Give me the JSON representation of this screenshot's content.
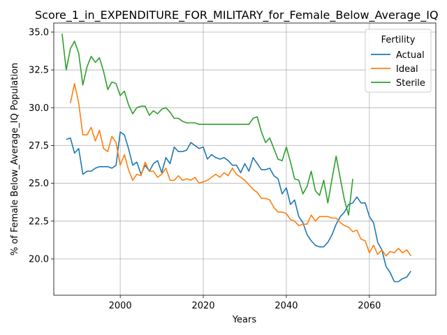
{
  "chart_data": {
    "type": "line",
    "title": "Score_1_in_EXPENDITURE_FOR_MILITARY_for_Female_Below_Average_IQ",
    "xlabel": "Years",
    "ylabel": "% of Female Below_Average_IQ Population",
    "xlim": [
      1984,
      2076
    ],
    "ylim": [
      17.6,
      35.6
    ],
    "x_ticks": [
      2000,
      2020,
      2040,
      2060
    ],
    "y_ticks": [
      20.0,
      22.5,
      25.0,
      27.5,
      30.0,
      32.5,
      35.0
    ],
    "x_tick_labels": [
      "2000",
      "2020",
      "2040",
      "2060"
    ],
    "y_tick_labels": [
      "20.0",
      "22.5",
      "25.0",
      "27.5",
      "30.0",
      "32.5",
      "35.0"
    ],
    "grid": true,
    "legend": {
      "title": "Fertility",
      "placement": "upper right"
    },
    "series": [
      {
        "name": "Actual",
        "color": "#1f77b4",
        "x": [
          1987,
          1988,
          1989,
          1990,
          1991,
          1992,
          1993,
          1994,
          1995,
          1996,
          1997,
          1998,
          1999,
          2000,
          2001,
          2002,
          2003,
          2004,
          2005,
          2006,
          2007,
          2008,
          2009,
          2010,
          2011,
          2012,
          2013,
          2014,
          2015,
          2016,
          2017,
          2018,
          2019,
          2020,
          2021,
          2022,
          2023,
          2024,
          2025,
          2026,
          2027,
          2028,
          2029,
          2030,
          2031,
          2032,
          2033,
          2034,
          2035,
          2036,
          2037,
          2038,
          2039,
          2040,
          2041,
          2042,
          2043,
          2044,
          2045,
          2046,
          2047,
          2048,
          2049,
          2050,
          2051,
          2052,
          2053,
          2054,
          2055,
          2056,
          2057,
          2058,
          2059,
          2060,
          2061,
          2062,
          2063,
          2064,
          2065,
          2066,
          2067,
          2068,
          2069,
          2070
        ],
        "values": [
          27.9,
          28.0,
          27.0,
          27.3,
          25.6,
          25.8,
          25.8,
          26.0,
          26.1,
          26.1,
          26.1,
          26.0,
          26.2,
          28.4,
          28.2,
          27.3,
          26.2,
          26.4,
          25.6,
          26.2,
          25.8,
          26.3,
          26.5,
          25.7,
          26.7,
          26.3,
          27.4,
          27.1,
          27.1,
          27.2,
          27.7,
          27.5,
          27.3,
          27.4,
          26.6,
          26.9,
          26.7,
          26.6,
          26.7,
          26.5,
          26.2,
          26.2,
          25.7,
          26.3,
          25.8,
          26.7,
          26.3,
          25.9,
          25.9,
          26.0,
          25.5,
          25.3,
          24.3,
          24.7,
          23.6,
          23.9,
          22.8,
          22.4,
          21.6,
          21.2,
          20.9,
          20.8,
          20.8,
          21.1,
          21.6,
          22.3,
          22.8,
          23.1,
          23.6,
          23.7,
          24.1,
          23.7,
          23.7,
          22.8,
          22.4,
          21.1,
          20.6,
          19.5,
          19.1,
          18.5,
          18.5,
          18.7,
          18.8,
          19.2
        ]
      },
      {
        "name": "Ideal",
        "color": "#ff7f0e",
        "x": [
          1988,
          1989,
          1990,
          1991,
          1992,
          1993,
          1994,
          1995,
          1996,
          1997,
          1998,
          1999,
          2000,
          2001,
          2002,
          2003,
          2004,
          2005,
          2006,
          2007,
          2008,
          2009,
          2010,
          2011,
          2012,
          2013,
          2014,
          2015,
          2016,
          2017,
          2018,
          2019,
          2020,
          2021,
          2022,
          2023,
          2024,
          2025,
          2026,
          2027,
          2028,
          2029,
          2030,
          2031,
          2032,
          2033,
          2034,
          2035,
          2036,
          2037,
          2038,
          2039,
          2040,
          2041,
          2042,
          2043,
          2044,
          2045,
          2046,
          2047,
          2048,
          2049,
          2050,
          2051,
          2052,
          2053,
          2054,
          2055,
          2056,
          2057,
          2058,
          2059,
          2060,
          2061,
          2062,
          2063,
          2064,
          2065,
          2066,
          2067,
          2068,
          2069,
          2070
        ],
        "values": [
          30.3,
          31.6,
          30.3,
          28.2,
          28.2,
          28.7,
          27.8,
          28.5,
          27.3,
          27.1,
          28.1,
          27.7,
          26.2,
          26.9,
          25.9,
          25.2,
          25.6,
          25.5,
          26.4,
          25.8,
          25.8,
          25.4,
          25.6,
          26.0,
          25.2,
          25.2,
          25.5,
          25.2,
          25.3,
          25.2,
          25.4,
          25.0,
          25.1,
          25.2,
          25.4,
          25.6,
          25.4,
          25.7,
          25.5,
          26.0,
          25.6,
          25.4,
          25.2,
          24.9,
          24.6,
          24.4,
          24.0,
          24.0,
          23.9,
          23.4,
          23.1,
          23.1,
          23.0,
          22.6,
          22.5,
          22.2,
          22.3,
          22.3,
          22.9,
          22.5,
          22.8,
          22.8,
          22.8,
          22.7,
          22.7,
          22.4,
          22.2,
          22.1,
          21.8,
          21.9,
          21.3,
          21.2,
          20.4,
          20.9,
          20.3,
          20.6,
          20.2,
          20.5,
          20.4,
          20.7,
          20.4,
          20.6,
          20.2
        ]
      },
      {
        "name": "Sterile",
        "color": "#2ca02c",
        "x": [
          1986,
          1987,
          1988,
          1989,
          1990,
          1991,
          1992,
          1993,
          1994,
          1995,
          1996,
          1997,
          1998,
          1999,
          2000,
          2001,
          2002,
          2003,
          2004,
          2005,
          2006,
          2007,
          2008,
          2009,
          2010,
          2011,
          2012,
          2013,
          2014,
          2015,
          2016,
          2017,
          2018,
          2019,
          2020,
          2021,
          2022,
          2023,
          2024,
          2025,
          2026,
          2027,
          2028,
          2029,
          2030,
          2031,
          2032,
          2033,
          2034,
          2035,
          2036,
          2037,
          2038,
          2039,
          2040,
          2041,
          2042,
          2043,
          2044,
          2045,
          2046,
          2047,
          2048,
          2049,
          2050,
          2051,
          2052,
          2053,
          2054,
          2055,
          2056
        ],
        "values": [
          34.9,
          32.5,
          33.9,
          34.4,
          33.6,
          31.5,
          32.7,
          33.4,
          33.0,
          33.3,
          32.4,
          31.2,
          31.7,
          31.6,
          30.8,
          31.1,
          30.2,
          29.6,
          30.0,
          30.1,
          30.1,
          29.5,
          29.8,
          29.6,
          29.9,
          30.0,
          29.7,
          29.3,
          29.3,
          29.1,
          29.0,
          29.0,
          29.0,
          28.9,
          28.9,
          28.9,
          28.9,
          28.9,
          28.9,
          28.9,
          28.9,
          28.9,
          28.9,
          28.9,
          28.9,
          28.9,
          29.3,
          29.4,
          28.4,
          27.7,
          28.0,
          27.3,
          26.6,
          26.5,
          27.4,
          26.4,
          25.3,
          25.2,
          24.3,
          24.8,
          25.8,
          24.5,
          24.2,
          25.2,
          23.7,
          25.3,
          26.8,
          25.3,
          23.9,
          22.9,
          25.3
        ]
      }
    ]
  }
}
